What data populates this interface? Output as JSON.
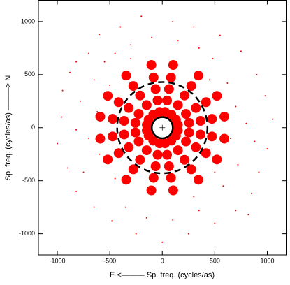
{
  "chart_data": {
    "type": "scatter",
    "x_label": "E <——— Sp. freq. (cycles/as)",
    "y_label": "Sp. freq. (cycles/as) ———> N",
    "xlim": [
      -1180,
      1180
    ],
    "ylim": [
      -1200,
      1200
    ],
    "xticks": [
      -1000,
      -500,
      0,
      500,
      1000
    ],
    "yticks": [
      -1000,
      -500,
      0,
      500,
      1000
    ],
    "circles": [
      {
        "radius": 430,
        "style": "dashed"
      },
      {
        "radius": 100,
        "style": "solid"
      }
    ],
    "series": [
      {
        "color": "#ff0000",
        "marker_size": 7,
        "x": [
          148,
          256,
          364,
          473,
          591,
          130,
          225,
          320,
          416,
          520,
          86,
          149,
          212,
          276,
          344,
          26,
          45,
          64,
          83,
          104,
          -148,
          -256,
          -364,
          -473,
          -591,
          -130,
          -225,
          -320,
          -416,
          -520,
          -86,
          -149,
          -212,
          -276,
          -344,
          -26,
          -45,
          -64,
          -83,
          -104,
          -148,
          -256,
          -364,
          -473,
          -591,
          -130,
          -225,
          -320,
          -416,
          -520,
          -86,
          -149,
          -212,
          -276,
          -344,
          -26,
          -45,
          -64,
          -83,
          -104,
          148,
          256,
          364,
          473,
          591,
          130,
          225,
          320,
          416,
          520,
          86,
          149,
          212,
          276,
          344,
          26,
          45,
          64,
          83,
          104
        ],
        "y": [
          26,
          45,
          64,
          83,
          104,
          75,
          130,
          185,
          240,
          300,
          123,
          213,
          303,
          393,
          491,
          148,
          256,
          364,
          473,
          591,
          26,
          45,
          64,
          83,
          104,
          75,
          130,
          185,
          240,
          300,
          123,
          213,
          303,
          393,
          491,
          148,
          256,
          364,
          473,
          591,
          -26,
          -45,
          -64,
          -83,
          -104,
          -75,
          -130,
          -185,
          -240,
          -300,
          -123,
          -213,
          -303,
          -393,
          -491,
          -148,
          -256,
          -364,
          -473,
          -591,
          -26,
          -45,
          -64,
          -83,
          -104,
          -75,
          -130,
          -185,
          -240,
          -300,
          -123,
          -213,
          -303,
          -393,
          -491,
          -148,
          -256,
          -364,
          -473,
          -591
        ]
      },
      {
        "color": "#ff0000",
        "marker_size": 1,
        "x": [
          -950,
          -880,
          -820,
          -1000,
          -960,
          -700,
          -600,
          -400,
          -200,
          100,
          300,
          550,
          750,
          900,
          980,
          1050,
          1000,
          920,
          850,
          700,
          500,
          250,
          0,
          -250,
          -480,
          -650,
          -900,
          -780,
          -700,
          -650,
          -550,
          -750,
          -600,
          -620,
          650,
          700,
          620,
          720,
          580,
          480,
          350,
          150,
          -100,
          -300,
          -450,
          -350,
          -150,
          100,
          350,
          800,
          -820,
          880,
          -500,
          500,
          450,
          -450,
          300,
          -300,
          -820,
          820
        ],
        "y": [
          350,
          520,
          -600,
          -150,
          100,
          700,
          880,
          950,
          1050,
          1000,
          950,
          870,
          720,
          500,
          300,
          80,
          -200,
          -420,
          -620,
          -780,
          -900,
          -1000,
          -1080,
          -1000,
          -880,
          -750,
          -380,
          250,
          -100,
          450,
          620,
          -420,
          -250,
          150,
          -100,
          200,
          420,
          -350,
          -550,
          650,
          750,
          820,
          850,
          780,
          700,
          -750,
          -850,
          -870,
          -780,
          40,
          -20,
          -130,
          400,
          -420,
          450,
          -480,
          -650,
          650,
          620,
          -820
        ]
      }
    ]
  }
}
